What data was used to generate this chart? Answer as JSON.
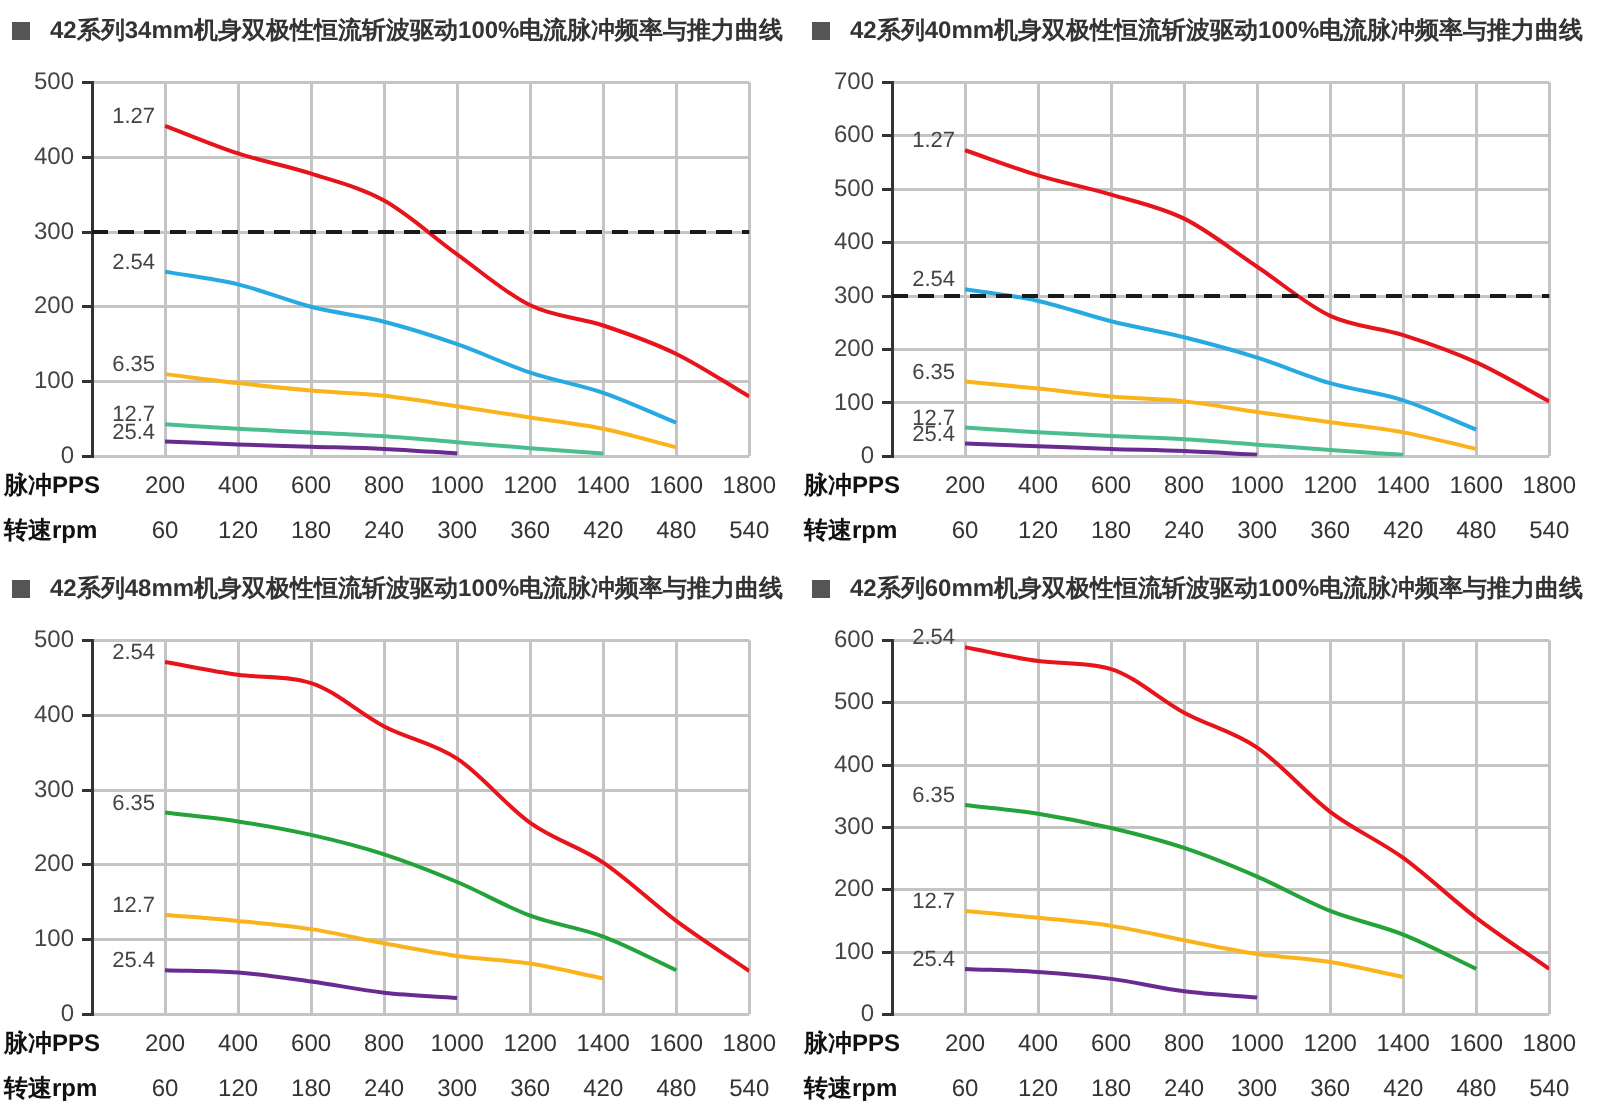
{
  "chart_data": [
    {
      "type": "line",
      "title": "42系列34mm机身双极性恒流斩波驱动100%电流脉冲频率与推力曲线",
      "xlabel": "脉冲PPS",
      "x2label": "转速rpm",
      "xlim": [
        0,
        1800
      ],
      "xticks": [
        200,
        400,
        600,
        800,
        1000,
        1200,
        1400,
        1600,
        1800
      ],
      "x2lim": [
        0,
        540
      ],
      "x2ticks": [
        60,
        120,
        180,
        240,
        300,
        360,
        420,
        480,
        540
      ],
      "ylim": [
        0,
        500
      ],
      "yticks": [
        0,
        100,
        200,
        300,
        400,
        500
      ],
      "grid": true,
      "ref_lines": [
        {
          "axis": "y",
          "value": 300,
          "color": "#1a1a1a",
          "line_style": "dashed"
        }
      ],
      "series": [
        {
          "name": "1.27",
          "color": "#e8141c",
          "x": [
            200,
            400,
            600,
            800,
            1000,
            1200,
            1400,
            1600,
            1800
          ],
          "values": [
            442,
            405,
            378,
            342,
            270,
            202,
            175,
            137,
            80
          ]
        },
        {
          "name": "2.54",
          "color": "#27a9e1",
          "x": [
            200,
            400,
            600,
            800,
            1000,
            1200,
            1400,
            1600
          ],
          "values": [
            247,
            230,
            200,
            180,
            150,
            112,
            85,
            45
          ]
        },
        {
          "name": "6.35",
          "color": "#fbb31b",
          "x": [
            200,
            400,
            600,
            800,
            1000,
            1200,
            1400,
            1600
          ],
          "values": [
            110,
            98,
            88,
            81,
            67,
            52,
            37,
            12
          ]
        },
        {
          "name": "12.7",
          "color": "#4cbd8f",
          "x": [
            200,
            400,
            600,
            800,
            1000,
            1200,
            1400
          ],
          "values": [
            43,
            37,
            32,
            27,
            19,
            11,
            4
          ]
        },
        {
          "name": "25.4",
          "color": "#6a2b90",
          "x": [
            200,
            400,
            600,
            800,
            1000
          ],
          "values": [
            20,
            16,
            13,
            10,
            4
          ]
        }
      ]
    },
    {
      "type": "line",
      "title": "42系列40mm机身双极性恒流斩波驱动100%电流脉冲频率与推力曲线",
      "xlabel": "脉冲PPS",
      "x2label": "转速rpm",
      "xlim": [
        0,
        1800
      ],
      "xticks": [
        200,
        400,
        600,
        800,
        1000,
        1200,
        1400,
        1600,
        1800
      ],
      "x2lim": [
        0,
        540
      ],
      "x2ticks": [
        60,
        120,
        180,
        240,
        300,
        360,
        420,
        480,
        540
      ],
      "ylim": [
        0,
        700
      ],
      "yticks": [
        0,
        100,
        200,
        300,
        400,
        500,
        600,
        700
      ],
      "grid": true,
      "ref_lines": [
        {
          "axis": "y",
          "value": 300,
          "color": "#1a1a1a",
          "line_style": "dashed"
        }
      ],
      "series": [
        {
          "name": "1.27",
          "color": "#e8141c",
          "x": [
            200,
            400,
            600,
            800,
            1000,
            1200,
            1400,
            1600,
            1800
          ],
          "values": [
            573,
            526,
            490,
            445,
            355,
            263,
            227,
            176,
            103
          ]
        },
        {
          "name": "2.54",
          "color": "#27a9e1",
          "x": [
            200,
            400,
            600,
            800,
            1000,
            1200,
            1400,
            1600
          ],
          "values": [
            313,
            291,
            253,
            223,
            185,
            137,
            105,
            50
          ]
        },
        {
          "name": "6.35",
          "color": "#fbb31b",
          "x": [
            200,
            400,
            600,
            800,
            1000,
            1200,
            1400,
            1600
          ],
          "values": [
            140,
            127,
            112,
            103,
            83,
            64,
            45,
            14
          ]
        },
        {
          "name": "12.7",
          "color": "#4cbd8f",
          "x": [
            200,
            400,
            600,
            800,
            1000,
            1200,
            1400
          ],
          "values": [
            54,
            45,
            38,
            32,
            22,
            12,
            3
          ]
        },
        {
          "name": "25.4",
          "color": "#6a2b90",
          "x": [
            200,
            400,
            600,
            800,
            1000
          ],
          "values": [
            24,
            19,
            14,
            10,
            3
          ]
        }
      ]
    },
    {
      "type": "line",
      "title": "42系列48mm机身双极性恒流斩波驱动100%电流脉冲频率与推力曲线",
      "xlabel": "脉冲PPS",
      "x2label": "转速rpm",
      "xlim": [
        0,
        1800
      ],
      "xticks": [
        200,
        400,
        600,
        800,
        1000,
        1200,
        1400,
        1600,
        1800
      ],
      "x2lim": [
        0,
        540
      ],
      "x2ticks": [
        60,
        120,
        180,
        240,
        300,
        360,
        420,
        480,
        540
      ],
      "ylim": [
        0,
        500
      ],
      "yticks": [
        0,
        100,
        200,
        300,
        400,
        500
      ],
      "grid": true,
      "series": [
        {
          "name": "2.54",
          "color": "#e8141c",
          "x": [
            200,
            400,
            600,
            800,
            1000,
            1200,
            1400,
            1600,
            1800
          ],
          "values": [
            471,
            454,
            443,
            385,
            342,
            256,
            203,
            125,
            58
          ]
        },
        {
          "name": "6.35",
          "color": "#23a33a",
          "x": [
            200,
            400,
            600,
            800,
            1000,
            1200,
            1400,
            1600
          ],
          "values": [
            270,
            258,
            240,
            214,
            177,
            132,
            104,
            59
          ]
        },
        {
          "name": "12.7",
          "color": "#fbb31b",
          "x": [
            200,
            400,
            600,
            800,
            1000,
            1200,
            1400
          ],
          "values": [
            133,
            125,
            114,
            95,
            78,
            68,
            48
          ]
        },
        {
          "name": "25.4",
          "color": "#6a2b90",
          "x": [
            200,
            400,
            600,
            800,
            1000
          ],
          "values": [
            59,
            56,
            44,
            29,
            22
          ]
        }
      ]
    },
    {
      "type": "line",
      "title": "42系列60mm机身双极性恒流斩波驱动100%电流脉冲频率与推力曲线",
      "xlabel": "脉冲PPS",
      "x2label": "转速rpm",
      "xlim": [
        0,
        1800
      ],
      "xticks": [
        200,
        400,
        600,
        800,
        1000,
        1200,
        1400,
        1600,
        1800
      ],
      "x2lim": [
        0,
        540
      ],
      "x2ticks": [
        60,
        120,
        180,
        240,
        300,
        360,
        420,
        480,
        540
      ],
      "ylim": [
        0,
        600
      ],
      "yticks": [
        0,
        100,
        200,
        300,
        400,
        500,
        600
      ],
      "grid": true,
      "series": [
        {
          "name": "2.54",
          "color": "#e8141c",
          "x": [
            200,
            400,
            600,
            800,
            1000,
            1200,
            1400,
            1600,
            1800
          ],
          "values": [
            589,
            567,
            554,
            484,
            428,
            325,
            251,
            155,
            73
          ]
        },
        {
          "name": "6.35",
          "color": "#23a33a",
          "x": [
            200,
            400,
            600,
            800,
            1000,
            1200,
            1400,
            1600
          ],
          "values": [
            336,
            322,
            299,
            267,
            221,
            166,
            128,
            73
          ]
        },
        {
          "name": "12.7",
          "color": "#fbb31b",
          "x": [
            200,
            400,
            600,
            800,
            1000,
            1200,
            1400
          ],
          "values": [
            166,
            155,
            142,
            119,
            97,
            84,
            60
          ]
        },
        {
          "name": "25.4",
          "color": "#6a2b90",
          "x": [
            200,
            400,
            600,
            800,
            1000
          ],
          "values": [
            73,
            68,
            57,
            37,
            27
          ]
        }
      ]
    }
  ]
}
